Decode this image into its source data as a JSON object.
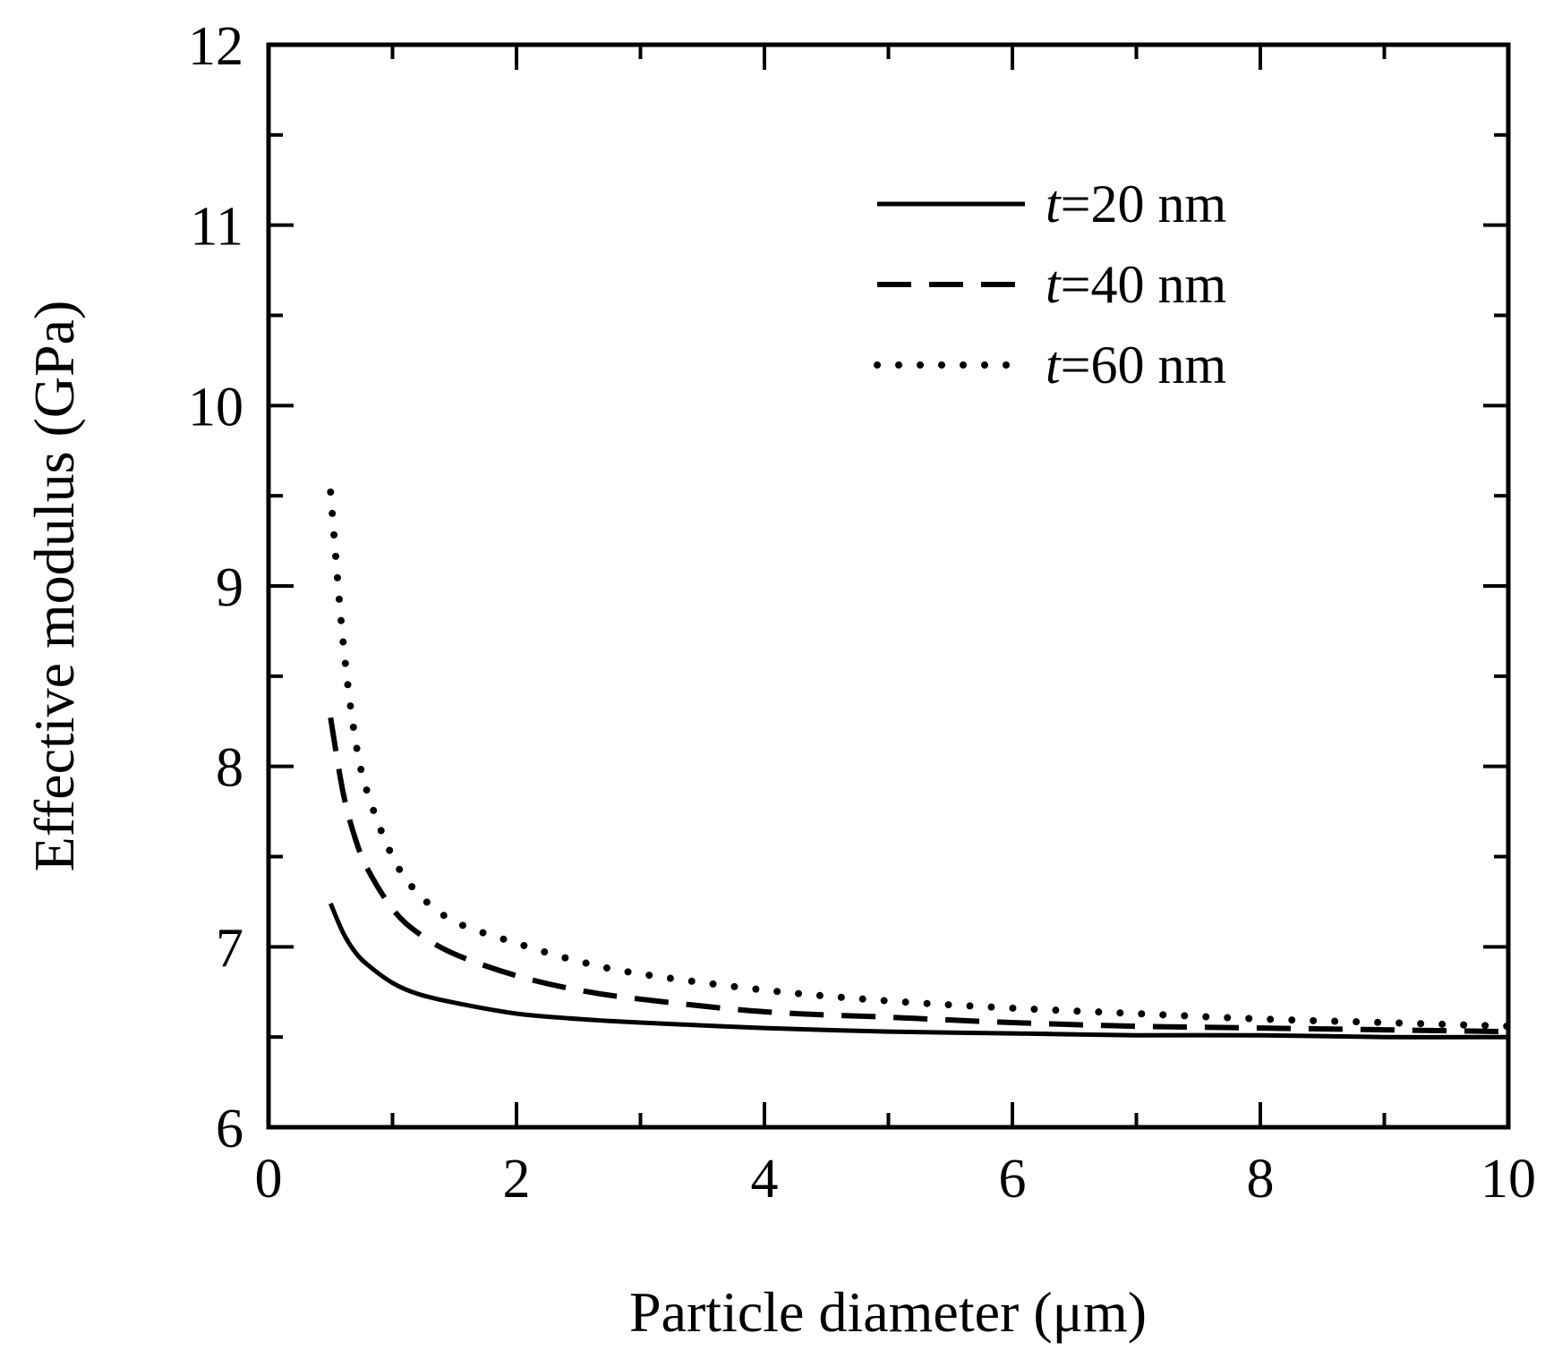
{
  "chart_data": {
    "type": "line",
    "title": "",
    "xlabel": "Particle diameter (μm)",
    "ylabel": "Effective modulus (GPa)",
    "xlim": [
      0,
      10
    ],
    "ylim": [
      6,
      12
    ],
    "xticks": [
      "0",
      "2",
      "4",
      "6",
      "8",
      "10"
    ],
    "yticks": [
      "6",
      "7",
      "8",
      "9",
      "10",
      "11",
      "12"
    ],
    "grid": false,
    "legend_position": "top-right",
    "series": [
      {
        "name": "t=20 nm",
        "legend_var": "t",
        "legend_rest": "=20 nm",
        "style": "solid",
        "x": [
          0.5,
          0.6,
          0.7,
          0.8,
          1.0,
          1.2,
          1.5,
          2.0,
          2.5,
          3.0,
          4.0,
          5.0,
          6.0,
          7.0,
          8.0,
          9.0,
          10.0
        ],
        "y": [
          7.24,
          7.08,
          6.97,
          6.9,
          6.8,
          6.74,
          6.69,
          6.63,
          6.6,
          6.58,
          6.55,
          6.53,
          6.52,
          6.51,
          6.51,
          6.5,
          6.5
        ]
      },
      {
        "name": "t=40 nm",
        "legend_var": "t",
        "legend_rest": "=40 nm",
        "style": "dashed",
        "x": [
          0.5,
          0.6,
          0.7,
          0.8,
          1.0,
          1.2,
          1.5,
          2.0,
          2.5,
          3.0,
          4.0,
          5.0,
          6.0,
          7.0,
          8.0,
          9.0,
          10.0
        ],
        "y": [
          8.27,
          7.86,
          7.6,
          7.43,
          7.21,
          7.08,
          6.96,
          6.84,
          6.76,
          6.71,
          6.64,
          6.61,
          6.58,
          6.56,
          6.55,
          6.54,
          6.53
        ]
      },
      {
        "name": "t=60 nm",
        "legend_var": "t",
        "legend_rest": "=60 nm",
        "style": "dotted",
        "x": [
          0.5,
          0.6,
          0.7,
          0.8,
          1.0,
          1.2,
          1.5,
          2.0,
          2.5,
          3.0,
          4.0,
          5.0,
          6.0,
          7.0,
          8.0,
          9.0,
          10.0
        ],
        "y": [
          9.52,
          8.7,
          8.15,
          7.85,
          7.5,
          7.3,
          7.14,
          7.02,
          6.92,
          6.85,
          6.76,
          6.7,
          6.66,
          6.63,
          6.6,
          6.58,
          6.56
        ]
      }
    ]
  }
}
